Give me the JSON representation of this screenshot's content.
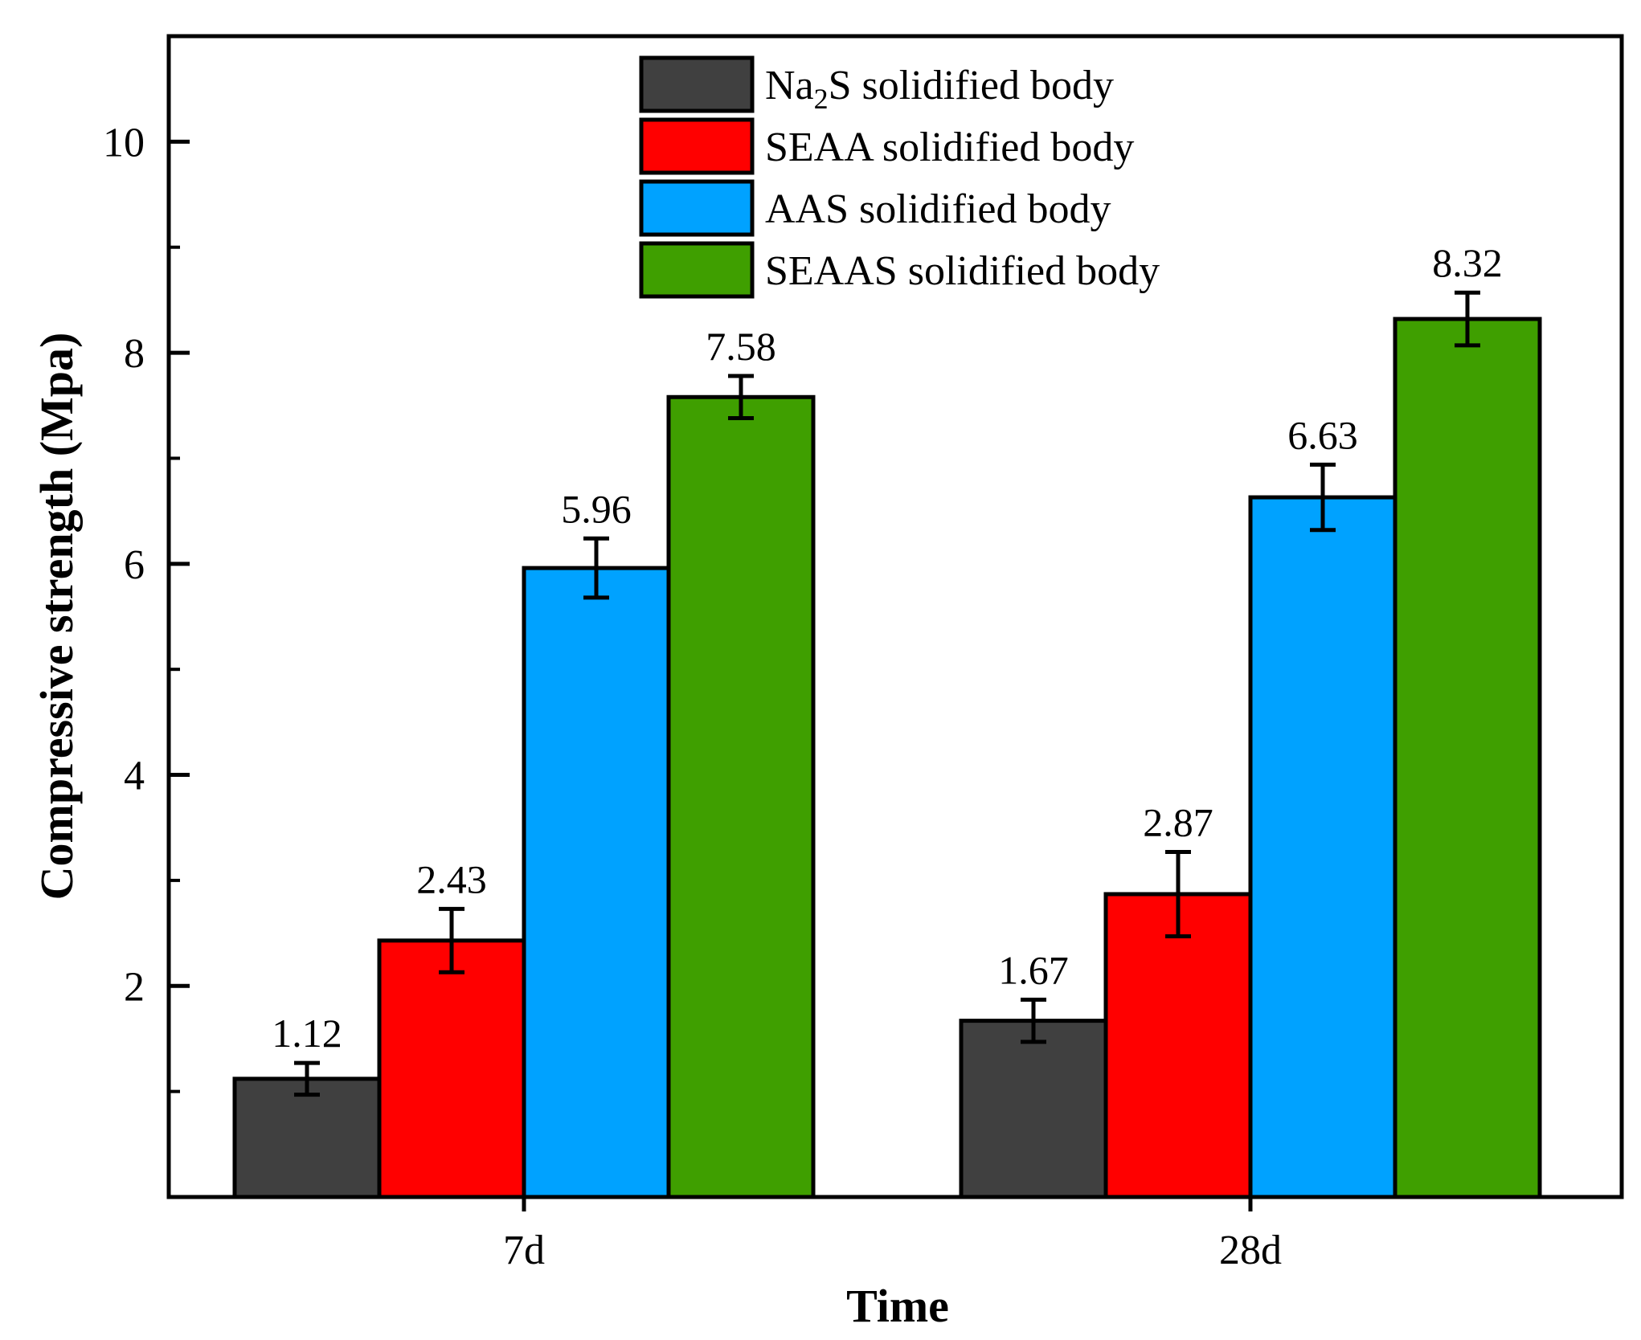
{
  "chart_data": {
    "type": "bar",
    "title": "",
    "xlabel": "Time",
    "ylabel": "Compressive strength (Mpa)",
    "categories": [
      "7d",
      "28d"
    ],
    "ylim": [
      0,
      11
    ],
    "yticks": [
      2,
      4,
      6,
      8,
      10
    ],
    "grid": false,
    "legend_position": "top-center",
    "series": [
      {
        "name": "Na2S solidified body",
        "legend_main": "Na",
        "legend_sub": "2",
        "legend_rest": "S solidified body",
        "color": "#404040",
        "values": [
          1.12,
          1.67
        ],
        "errors": [
          0.15,
          0.2
        ],
        "value_labels": [
          "1.12",
          "1.67"
        ]
      },
      {
        "name": "SEAA solidified body",
        "color": "#ff0000",
        "values": [
          2.43,
          2.87
        ],
        "errors": [
          0.3,
          0.4
        ],
        "value_labels": [
          "2.43",
          "2.87"
        ]
      },
      {
        "name": "AAS solidified body",
        "color": "#00a2ff",
        "values": [
          5.96,
          6.63
        ],
        "errors": [
          0.28,
          0.31
        ],
        "value_labels": [
          "5.96",
          "6.63"
        ]
      },
      {
        "name": "SEAAS solidified body",
        "color": "#3f9f00",
        "values": [
          7.58,
          8.32
        ],
        "errors": [
          0.2,
          0.25
        ],
        "value_labels": [
          "7.58",
          "8.32"
        ]
      }
    ]
  }
}
